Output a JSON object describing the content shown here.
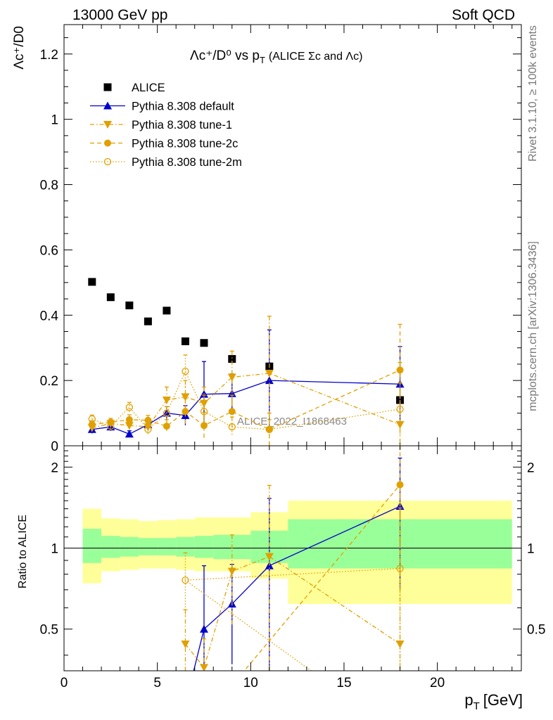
{
  "header": {
    "left": "13000 GeV pp",
    "right": "Soft QCD"
  },
  "side_labels": {
    "rivet": "Rivet 3.1.10, ≥ 100k events",
    "mcplots": "mcplots.cern.ch [arXiv:1306.3436]"
  },
  "chart_data": [
    {
      "type": "scatter",
      "title_main": "Λc⁺/D⁰ vs p",
      "title_sub": "T",
      "title_note": "(ALICE Σc and Λc)",
      "ylabel": "Λc⁺/D0",
      "watermark": "ALICE_2022_I1868463",
      "xlim": [
        0,
        24.5
      ],
      "ylim": [
        0,
        1.29
      ],
      "yticks": [
        {
          "v": 0,
          "label": "0"
        },
        {
          "v": 0.2,
          "label": "0.2"
        },
        {
          "v": 0.4,
          "label": "0.4"
        },
        {
          "v": 0.6,
          "label": "0.6"
        },
        {
          "v": 0.8,
          "label": "0.8"
        },
        {
          "v": 1.0,
          "label": "1"
        },
        {
          "v": 1.2,
          "label": "1.2"
        }
      ],
      "legend": [
        {
          "key": "alice",
          "label": "ALICE"
        },
        {
          "key": "default",
          "label": "Pythia 8.308 default"
        },
        {
          "key": "tune1",
          "label": "Pythia 8.308 tune-1"
        },
        {
          "key": "tune2c",
          "label": "Pythia 8.308 tune-2c"
        },
        {
          "key": "tune2m",
          "label": "Pythia 8.308 tune-2m"
        }
      ],
      "series": [
        {
          "key": "alice",
          "color": "#000000",
          "line": "none",
          "marker": "square",
          "x": [
            1.5,
            2.5,
            3.5,
            4.5,
            5.5,
            6.5,
            7.5,
            9.0,
            11.0,
            18.0
          ],
          "y": [
            0.502,
            0.455,
            0.43,
            0.381,
            0.414,
            0.32,
            0.315,
            0.266,
            0.243,
            0.14
          ],
          "err": [
            0,
            0,
            0,
            0,
            0,
            0,
            0,
            0,
            0,
            0
          ]
        },
        {
          "key": "default",
          "color": "#0000cc",
          "line": "solid",
          "marker": "triangle-up",
          "x": [
            1.5,
            2.5,
            3.5,
            4.5,
            5.5,
            6.5,
            7.5,
            9.0,
            11.0,
            18.0
          ],
          "y": [
            0.05,
            0.058,
            0.036,
            0.065,
            0.1,
            0.093,
            0.158,
            0.16,
            0.2,
            0.189
          ],
          "err": [
            0.012,
            0.012,
            0.01,
            0.015,
            0.02,
            0.03,
            0.1,
            0.06,
            0.155,
            0.115
          ]
        },
        {
          "key": "tune1",
          "color": "#e0a000",
          "line": "dashdot",
          "marker": "triangle-down",
          "x": [
            1.5,
            2.5,
            3.5,
            4.5,
            5.5,
            6.5,
            7.5,
            9.0,
            11.0,
            18.0
          ],
          "y": [
            0.055,
            0.068,
            0.062,
            0.058,
            0.14,
            0.15,
            0.13,
            0.21,
            0.222,
            0.065
          ],
          "err": [
            0.012,
            0.012,
            0.015,
            0.015,
            0.04,
            0.05,
            0.05,
            0.08,
            0.175,
            0.19
          ]
        },
        {
          "key": "tune2c",
          "color": "#e0a000",
          "line": "dashed",
          "marker": "circle",
          "x": [
            1.5,
            2.5,
            3.5,
            4.5,
            5.5,
            6.5,
            7.5,
            9.0,
            11.0,
            18.0
          ],
          "y": [
            0.065,
            0.072,
            0.08,
            0.078,
            0.06,
            0.105,
            0.062,
            0.105,
            0.05,
            0.232
          ],
          "err": [
            0.012,
            0.012,
            0.015,
            0.015,
            0.02,
            0.04,
            0.04,
            0.05,
            0.05,
            0.14
          ]
        },
        {
          "key": "tune2m",
          "color": "#e0a000",
          "line": "dotted",
          "marker": "circle-open",
          "x": [
            1.5,
            2.5,
            3.5,
            4.5,
            5.5,
            6.5,
            7.5,
            9.0,
            11.0,
            18.0
          ],
          "y": [
            0.082,
            0.06,
            0.118,
            0.05,
            0.1,
            0.228,
            0.105,
            0.058,
            0.05,
            0.112
          ],
          "err": [
            0.012,
            0.012,
            0.015,
            0.015,
            0.02,
            0.05,
            0.05,
            0.03,
            0.03,
            0.08
          ]
        }
      ]
    },
    {
      "type": "scatter",
      "ylabel": "Ratio to ALICE",
      "xlabel_main": "p",
      "xlabel_sub": "T",
      "xlabel_unit": "[GeV]",
      "xlim": [
        0,
        24.5
      ],
      "ylim": [
        0.35,
        2.4
      ],
      "xticks": [
        {
          "v": 0,
          "label": "0"
        },
        {
          "v": 5,
          "label": "5"
        },
        {
          "v": 10,
          "label": "10"
        },
        {
          "v": 15,
          "label": "15"
        },
        {
          "v": 20,
          "label": "20"
        }
      ],
      "yticks": [
        {
          "v": 0.5,
          "label": "0.5"
        },
        {
          "v": 1,
          "label": "1"
        },
        {
          "v": 2,
          "label": "2"
        }
      ],
      "bands": [
        {
          "x0": 1,
          "x1": 2,
          "yellow": [
            0.74,
            1.4
          ],
          "green": [
            0.88,
            1.18
          ]
        },
        {
          "x0": 2,
          "x1": 3,
          "yellow": [
            0.82,
            1.29
          ],
          "green": [
            0.92,
            1.11
          ]
        },
        {
          "x0": 3,
          "x1": 4,
          "yellow": [
            0.83,
            1.28
          ],
          "green": [
            0.93,
            1.1
          ]
        },
        {
          "x0": 4,
          "x1": 5,
          "yellow": [
            0.84,
            1.26
          ],
          "green": [
            0.94,
            1.09
          ]
        },
        {
          "x0": 5,
          "x1": 6,
          "yellow": [
            0.84,
            1.27
          ],
          "green": [
            0.94,
            1.09
          ]
        },
        {
          "x0": 6,
          "x1": 7,
          "yellow": [
            0.83,
            1.28
          ],
          "green": [
            0.93,
            1.1
          ]
        },
        {
          "x0": 7,
          "x1": 8,
          "yellow": [
            0.82,
            1.3
          ],
          "green": [
            0.92,
            1.11
          ]
        },
        {
          "x0": 8,
          "x1": 10,
          "yellow": [
            0.82,
            1.3
          ],
          "green": [
            0.91,
            1.12
          ]
        },
        {
          "x0": 10,
          "x1": 12,
          "yellow": [
            0.77,
            1.36
          ],
          "green": [
            0.88,
            1.16
          ]
        },
        {
          "x0": 12,
          "x1": 24,
          "yellow": [
            0.62,
            1.5
          ],
          "green": [
            0.84,
            1.28
          ]
        }
      ],
      "reference": 1,
      "series": [
        {
          "key": "default",
          "color": "#0000cc",
          "line": "solid",
          "marker": "triangle-up",
          "x": [
            7.5,
            9.0,
            11.0,
            18.0
          ],
          "y": [
            0.5,
            0.62,
            0.86,
            1.43
          ],
          "err": [
            0.36,
            0.25,
            0.67,
            0.73
          ],
          "lead_x": 6.9
        },
        {
          "key": "tune1",
          "color": "#e0a000",
          "line": "dashdot",
          "marker": "triangle-down",
          "x": [
            6.5,
            7.5,
            9.0,
            11.0,
            18.0
          ],
          "y": [
            0.44,
            0.36,
            0.82,
            0.93,
            0.44
          ],
          "err": [
            0.15,
            0.1,
            0.3,
            0.78,
            1.3
          ]
        },
        {
          "key": "tune2c",
          "color": "#e0a000",
          "line": "dashed",
          "marker": "circle",
          "x": [
            18.0
          ],
          "y": [
            1.72
          ],
          "err": [
            1.0
          ],
          "lead_x": 9.5
        },
        {
          "key": "tune2m",
          "color": "#e0a000",
          "line": "dotted",
          "marker": "circle-open",
          "x": [
            6.5,
            18.0
          ],
          "y": [
            0.76,
            0.84
          ],
          "err": [
            0.2,
            0.57
          ],
          "lead_x": 13.5
        }
      ]
    }
  ]
}
